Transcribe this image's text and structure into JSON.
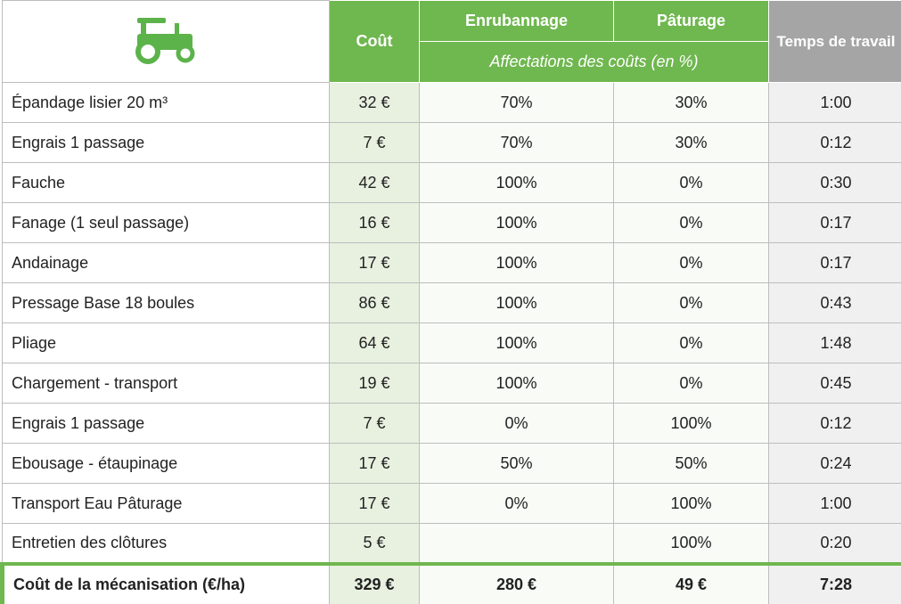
{
  "header": {
    "cost": "Coût",
    "col1": "Enrubannage",
    "col2": "Pâturage",
    "subtitle": "Affectations des coûts (en %)",
    "time": "Temps de travail"
  },
  "rows": [
    [
      "Épandage lisier 20 m³",
      "32 €",
      "70%",
      "30%",
      "1:00"
    ],
    [
      "Engrais 1 passage",
      "7 €",
      "70%",
      "30%",
      "0:12"
    ],
    [
      "Fauche",
      "42 €",
      "100%",
      "0%",
      "0:30"
    ],
    [
      "Fanage (1 seul passage)",
      "16 €",
      "100%",
      "0%",
      "0:17"
    ],
    [
      "Andainage",
      "17 €",
      "100%",
      "0%",
      "0:17"
    ],
    [
      "Pressage Base 18 boules",
      "86 €",
      "100%",
      "0%",
      "0:43"
    ],
    [
      "Pliage",
      "64 €",
      "100%",
      "0%",
      "1:48"
    ],
    [
      "Chargement - transport",
      "19 €",
      "100%",
      "0%",
      "0:45"
    ],
    [
      "Engrais 1 passage",
      "7 €",
      "0%",
      "100%",
      "0:12"
    ],
    [
      "Ebousage - étaupinage",
      "17 €",
      "50%",
      "50%",
      "0:24"
    ],
    [
      "Transport Eau Pâturage",
      "17 €",
      "0%",
      "100%",
      "1:00"
    ],
    [
      "Entretien des clôtures",
      "5 €",
      null,
      "100%",
      "0:20"
    ]
  ],
  "total": [
    "Coût de la mécanisation (€/ha)",
    "329 €",
    "280 €",
    "49 €",
    "7:28"
  ]
}
